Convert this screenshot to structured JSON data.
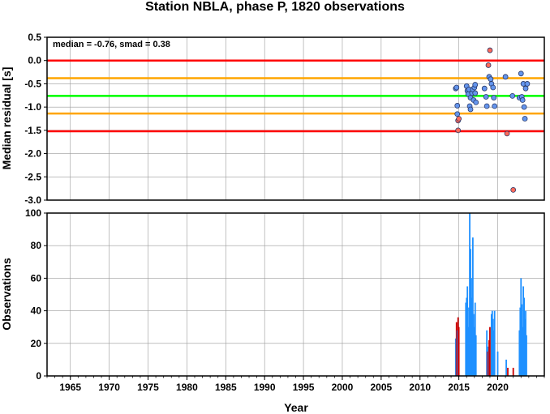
{
  "title": "Station NBLA, phase P, 1820 observations",
  "chart_data": [
    {
      "type": "scatter",
      "ylabel": "Median residual [s]",
      "annotation": "median = -0.76, smad = 0.38",
      "xlim": [
        1962,
        2026
      ],
      "ylim": [
        -3.0,
        0.5
      ],
      "yticks": [
        "0.5",
        "0.0",
        "-0.5",
        "-1.0",
        "-1.5",
        "-2.0",
        "-2.5",
        "-3.0"
      ],
      "reference_lines": [
        {
          "y": 0.0,
          "color": "#ff0000"
        },
        {
          "y": -0.38,
          "color": "#ffa500"
        },
        {
          "y": -0.76,
          "color": "#00ff00"
        },
        {
          "y": -1.14,
          "color": "#ffa500"
        },
        {
          "y": -1.52,
          "color": "#ff0000"
        }
      ],
      "colors": {
        "inlier": "#6495ed",
        "outlier": "#ff6a5a"
      },
      "points": [
        {
          "x": 2014.6,
          "y": -0.6,
          "c": "inlier"
        },
        {
          "x": 2014.7,
          "y": -0.58,
          "c": "inlier"
        },
        {
          "x": 2014.8,
          "y": -0.97,
          "c": "inlier"
        },
        {
          "x": 2014.8,
          "y": -1.15,
          "c": "inlier"
        },
        {
          "x": 2014.9,
          "y": -1.29,
          "c": "outlier"
        },
        {
          "x": 2015.0,
          "y": -1.25,
          "c": "outlier"
        },
        {
          "x": 2014.9,
          "y": -1.5,
          "c": "outlier"
        },
        {
          "x": 2016.0,
          "y": -0.55,
          "c": "inlier"
        },
        {
          "x": 2016.1,
          "y": -0.65,
          "c": "inlier"
        },
        {
          "x": 2016.2,
          "y": -0.72,
          "c": "inlier"
        },
        {
          "x": 2016.3,
          "y": -0.62,
          "c": "inlier"
        },
        {
          "x": 2016.4,
          "y": -0.98,
          "c": "inlier"
        },
        {
          "x": 2016.5,
          "y": -1.05,
          "c": "inlier"
        },
        {
          "x": 2016.5,
          "y": -0.8,
          "c": "inlier"
        },
        {
          "x": 2016.7,
          "y": -0.7,
          "c": "inlier"
        },
        {
          "x": 2016.8,
          "y": -0.62,
          "c": "inlier"
        },
        {
          "x": 2016.9,
          "y": -0.85,
          "c": "inlier"
        },
        {
          "x": 2017.0,
          "y": -0.58,
          "c": "inlier"
        },
        {
          "x": 2017.1,
          "y": -0.52,
          "c": "inlier"
        },
        {
          "x": 2017.2,
          "y": -0.9,
          "c": "inlier"
        },
        {
          "x": 2017.1,
          "y": -0.7,
          "c": "inlier"
        },
        {
          "x": 2018.3,
          "y": -0.6,
          "c": "inlier"
        },
        {
          "x": 2018.5,
          "y": -0.78,
          "c": "inlier"
        },
        {
          "x": 2018.6,
          "y": -0.98,
          "c": "inlier"
        },
        {
          "x": 2018.8,
          "y": -0.1,
          "c": "outlier"
        },
        {
          "x": 2018.9,
          "y": -0.35,
          "c": "inlier"
        },
        {
          "x": 2019.0,
          "y": 0.22,
          "c": "outlier"
        },
        {
          "x": 2019.1,
          "y": -0.4,
          "c": "inlier"
        },
        {
          "x": 2019.2,
          "y": -0.5,
          "c": "inlier"
        },
        {
          "x": 2019.4,
          "y": -0.58,
          "c": "inlier"
        },
        {
          "x": 2019.5,
          "y": -0.8,
          "c": "inlier"
        },
        {
          "x": 2019.6,
          "y": -0.98,
          "c": "inlier"
        },
        {
          "x": 2021.0,
          "y": -0.35,
          "c": "inlier"
        },
        {
          "x": 2021.2,
          "y": -1.57,
          "c": "outlier"
        },
        {
          "x": 2021.9,
          "y": -0.76,
          "c": "inlier"
        },
        {
          "x": 2022.0,
          "y": -2.78,
          "c": "outlier"
        },
        {
          "x": 2022.8,
          "y": -0.8,
          "c": "inlier"
        },
        {
          "x": 2023.0,
          "y": -0.28,
          "c": "inlier"
        },
        {
          "x": 2023.1,
          "y": -0.78,
          "c": "inlier"
        },
        {
          "x": 2023.2,
          "y": -0.85,
          "c": "inlier"
        },
        {
          "x": 2023.3,
          "y": -0.5,
          "c": "inlier"
        },
        {
          "x": 2023.4,
          "y": -1.0,
          "c": "inlier"
        },
        {
          "x": 2023.5,
          "y": -1.25,
          "c": "inlier"
        },
        {
          "x": 2023.6,
          "y": -0.6,
          "c": "inlier"
        },
        {
          "x": 2023.8,
          "y": -0.5,
          "c": "inlier"
        }
      ]
    },
    {
      "type": "bar",
      "xlabel": "Year",
      "ylabel": "Observations",
      "xlim": [
        1962,
        2026
      ],
      "ylim": [
        0,
        100
      ],
      "xticks": [
        "1965",
        "1970",
        "1975",
        "1980",
        "1985",
        "1990",
        "1995",
        "2000",
        "2005",
        "2010",
        "2015",
        "2020"
      ],
      "yticks": [
        "0",
        "20",
        "40",
        "60",
        "80",
        "100"
      ],
      "colors": {
        "inlier": "#1e90ff",
        "outlier": "#cc0000"
      },
      "bars": [
        {
          "x": 2014.6,
          "y": 23,
          "c": "inlier"
        },
        {
          "x": 2014.7,
          "y": 33,
          "c": "outlier"
        },
        {
          "x": 2014.8,
          "y": 28,
          "c": "inlier"
        },
        {
          "x": 2014.9,
          "y": 36,
          "c": "outlier"
        },
        {
          "x": 2015.0,
          "y": 30,
          "c": "outlier"
        },
        {
          "x": 2015.9,
          "y": 45,
          "c": "inlier"
        },
        {
          "x": 2016.0,
          "y": 48,
          "c": "inlier"
        },
        {
          "x": 2016.1,
          "y": 55,
          "c": "inlier"
        },
        {
          "x": 2016.2,
          "y": 30,
          "c": "inlier"
        },
        {
          "x": 2016.3,
          "y": 42,
          "c": "inlier"
        },
        {
          "x": 2016.4,
          "y": 100,
          "c": "inlier"
        },
        {
          "x": 2016.5,
          "y": 78,
          "c": "inlier"
        },
        {
          "x": 2016.6,
          "y": 60,
          "c": "inlier"
        },
        {
          "x": 2016.7,
          "y": 48,
          "c": "inlier"
        },
        {
          "x": 2016.8,
          "y": 85,
          "c": "inlier"
        },
        {
          "x": 2016.9,
          "y": 38,
          "c": "inlier"
        },
        {
          "x": 2017.0,
          "y": 30,
          "c": "inlier"
        },
        {
          "x": 2017.1,
          "y": 45,
          "c": "inlier"
        },
        {
          "x": 2017.2,
          "y": 25,
          "c": "inlier"
        },
        {
          "x": 2018.6,
          "y": 28,
          "c": "inlier"
        },
        {
          "x": 2018.7,
          "y": 15,
          "c": "outlier"
        },
        {
          "x": 2018.8,
          "y": 18,
          "c": "inlier"
        },
        {
          "x": 2018.9,
          "y": 22,
          "c": "outlier"
        },
        {
          "x": 2019.0,
          "y": 30,
          "c": "outlier"
        },
        {
          "x": 2019.2,
          "y": 38,
          "c": "inlier"
        },
        {
          "x": 2019.3,
          "y": 40,
          "c": "inlier"
        },
        {
          "x": 2019.4,
          "y": 35,
          "c": "inlier"
        },
        {
          "x": 2019.5,
          "y": 28,
          "c": "inlier"
        },
        {
          "x": 2019.6,
          "y": 40,
          "c": "inlier"
        },
        {
          "x": 2020.0,
          "y": 15,
          "c": "inlier"
        },
        {
          "x": 2021.1,
          "y": 10,
          "c": "inlier"
        },
        {
          "x": 2021.3,
          "y": 5,
          "c": "outlier"
        },
        {
          "x": 2022.0,
          "y": 5,
          "c": "outlier"
        },
        {
          "x": 2022.8,
          "y": 28,
          "c": "inlier"
        },
        {
          "x": 2022.9,
          "y": 42,
          "c": "inlier"
        },
        {
          "x": 2023.0,
          "y": 60,
          "c": "inlier"
        },
        {
          "x": 2023.1,
          "y": 44,
          "c": "inlier"
        },
        {
          "x": 2023.2,
          "y": 30,
          "c": "inlier"
        },
        {
          "x": 2023.3,
          "y": 55,
          "c": "inlier"
        },
        {
          "x": 2023.4,
          "y": 48,
          "c": "inlier"
        },
        {
          "x": 2023.5,
          "y": 35,
          "c": "inlier"
        },
        {
          "x": 2023.6,
          "y": 40,
          "c": "inlier"
        },
        {
          "x": 2023.7,
          "y": 25,
          "c": "inlier"
        }
      ]
    }
  ]
}
